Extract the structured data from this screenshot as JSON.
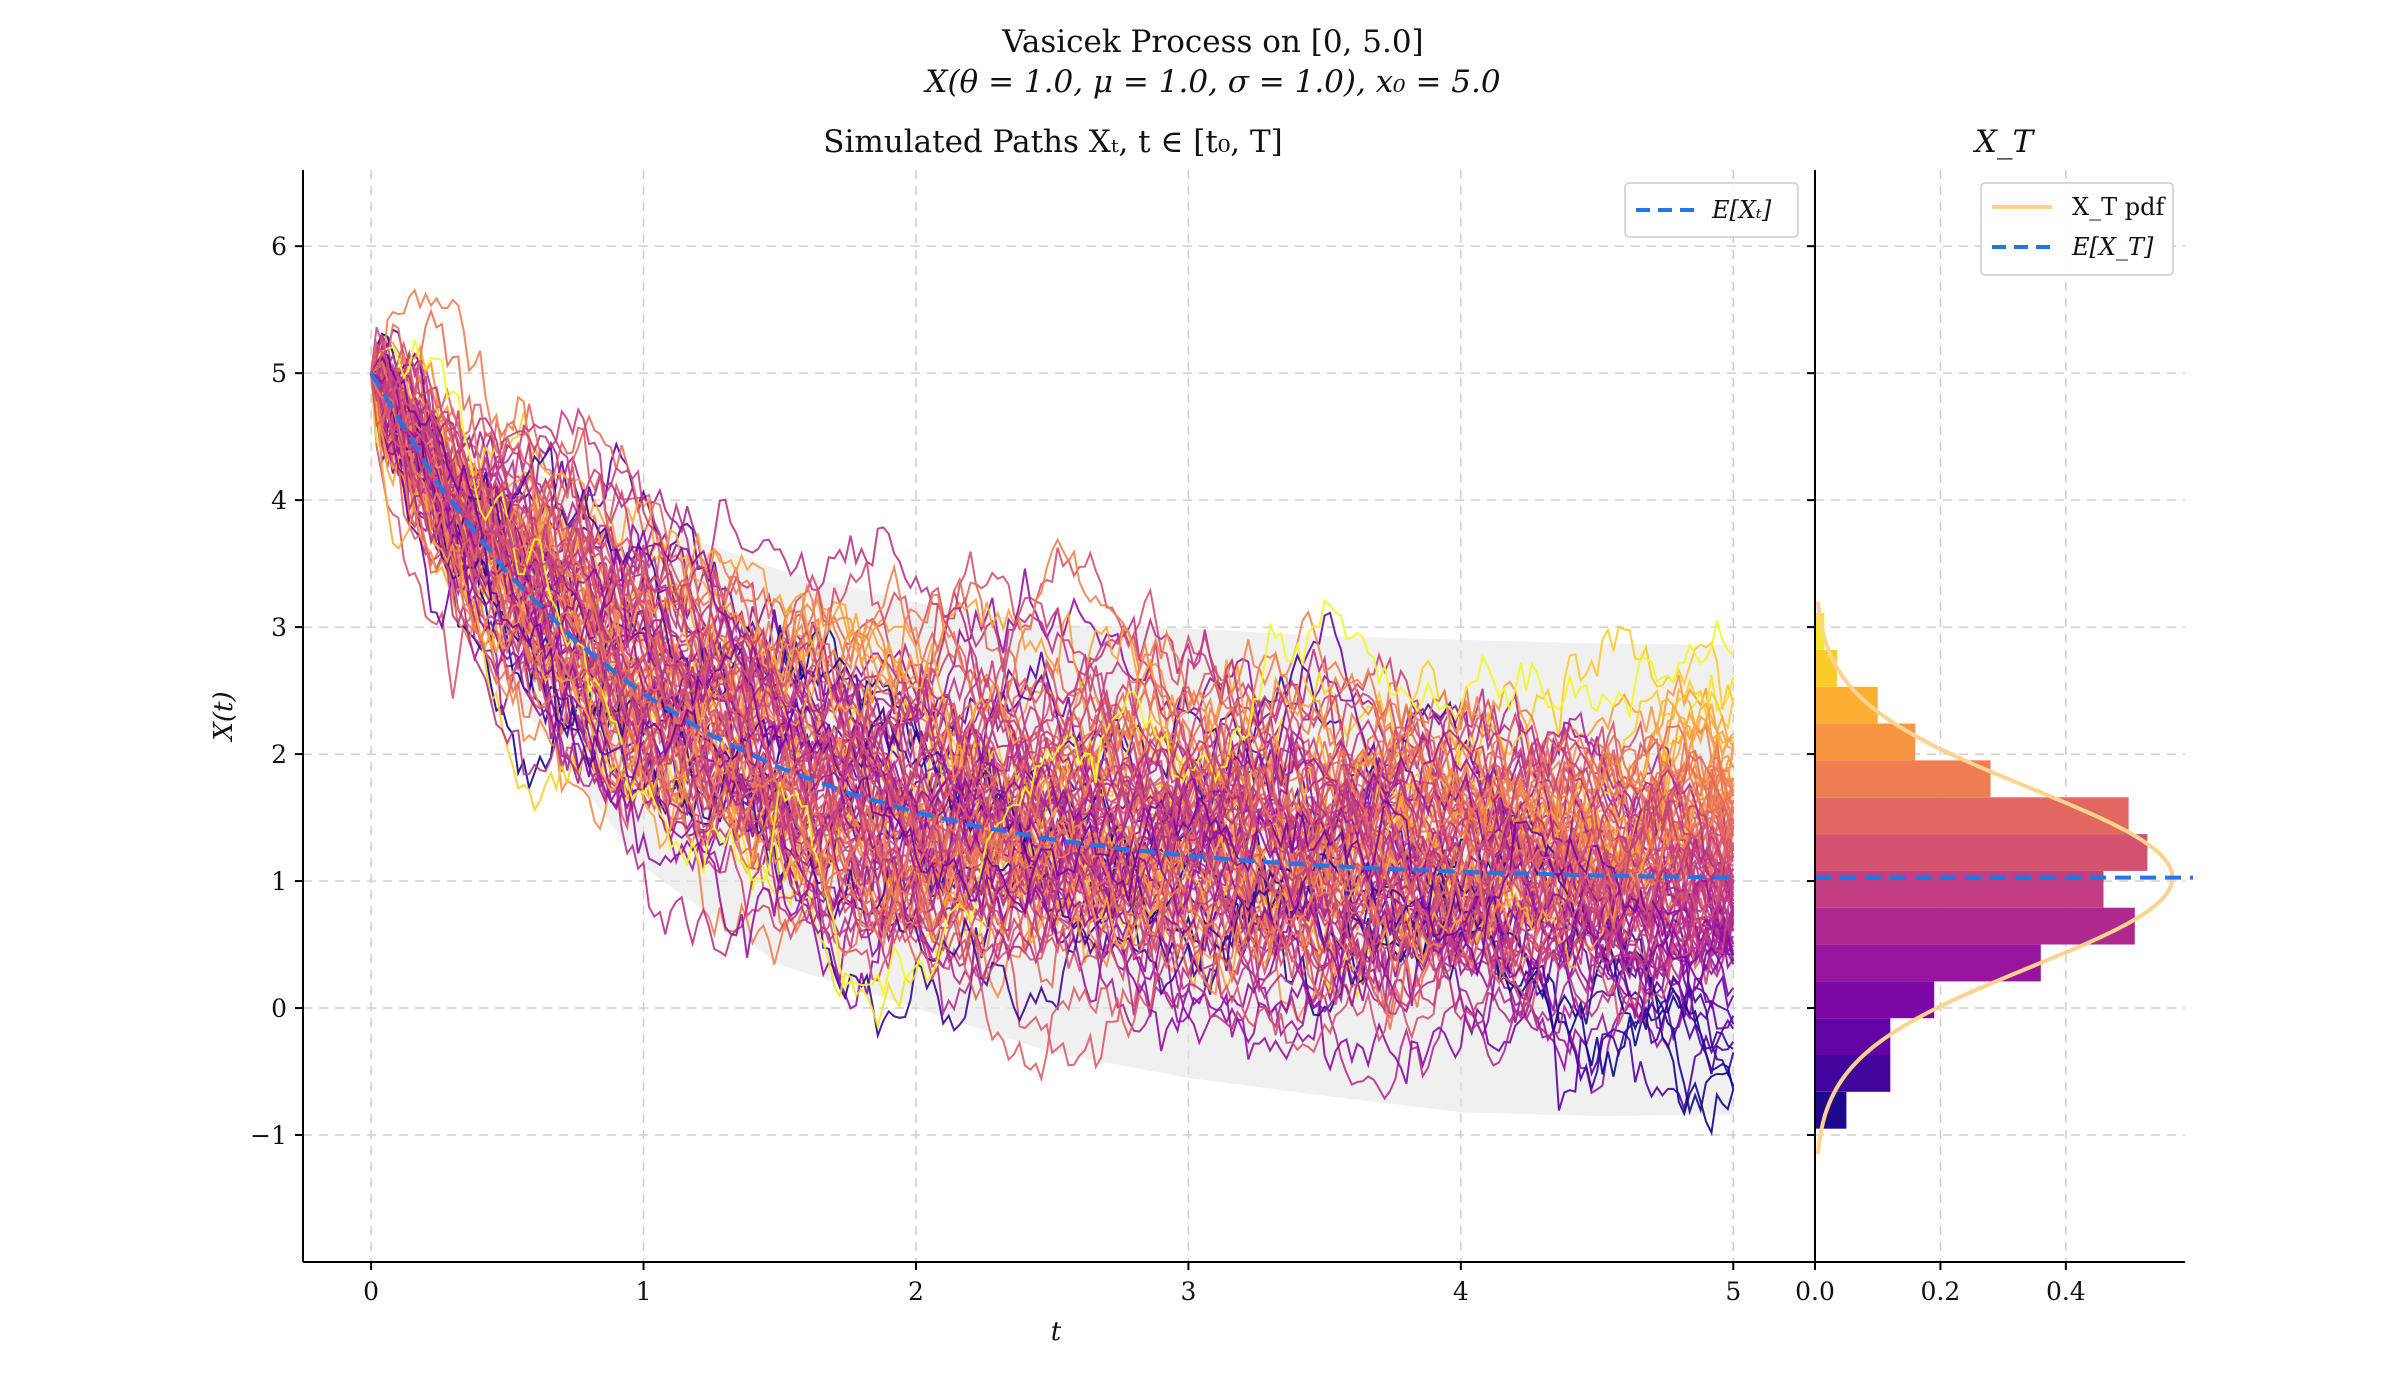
{
  "figure": {
    "title_line1": "Vasicek Process on [0, 5.0]",
    "title_line2": "X(θ = 1.0, μ = 1.0, σ = 1.0), x₀ = 5.0"
  },
  "chart_data": [
    {
      "type": "line",
      "title": "Simulated Paths Xₜ, t ∈ [t₀, T]",
      "xlabel": "t",
      "ylabel": "X(t)",
      "xlim": [
        -0.25,
        5.3
      ],
      "ylim": [
        -2.0,
        6.6
      ],
      "xticks": [
        0,
        1,
        2,
        3,
        4,
        5
      ],
      "xtick_labels": [
        "0",
        "1",
        "2",
        "3",
        "4",
        "5"
      ],
      "yticks": [
        -1,
        0,
        1,
        2,
        3,
        4,
        5,
        6
      ],
      "ytick_labels": [
        "−1",
        "0",
        "1",
        "2",
        "3",
        "4",
        "5",
        "6"
      ],
      "grid": true,
      "process": {
        "theta": 1.0,
        "mu": 1.0,
        "sigma": 1.0,
        "x0": 5.0,
        "T": 5.0
      },
      "n_paths": 100,
      "n_steps": 500,
      "path_colormap": "plasma",
      "path_color_by": "terminal value",
      "series": [
        {
          "name": "E[Xₜ]",
          "style": "dashed",
          "color": "#1f77e8",
          "x": [
            0,
            0.25,
            0.5,
            0.75,
            1.0,
            1.25,
            1.5,
            1.75,
            2.0,
            2.25,
            2.5,
            2.75,
            3.0,
            3.25,
            3.5,
            3.75,
            4.0,
            4.25,
            4.5,
            4.75,
            5.0
          ],
          "y": [
            5.0,
            4.115,
            3.426,
            2.89,
            2.472,
            2.146,
            1.893,
            1.695,
            1.541,
            1.421,
            1.328,
            1.256,
            1.199,
            1.155,
            1.121,
            1.094,
            1.073,
            1.057,
            1.044,
            1.035,
            1.027
          ]
        }
      ],
      "confidence_band": {
        "color": "#e6e6e6",
        "x": [
          0,
          0.5,
          1.0,
          1.5,
          2.0,
          2.5,
          3.0,
          3.5,
          4.0,
          4.5,
          5.0
        ],
        "upper": [
          5.0,
          4.32,
          3.83,
          3.45,
          3.19,
          3.02,
          2.99,
          2.93,
          2.9,
          2.87,
          2.86
        ],
        "lower": [
          5.0,
          2.53,
          1.11,
          0.34,
          0.0,
          -0.35,
          -0.55,
          -0.69,
          -0.82,
          -0.85,
          -0.84
        ]
      },
      "legend": {
        "position": "upper right",
        "entries": [
          "E[Xₜ]"
        ]
      }
    },
    {
      "type": "bar",
      "orientation": "horizontal",
      "title": "X_T",
      "xlim": [
        0,
        0.59
      ],
      "ylim": [
        -2.0,
        6.6
      ],
      "xticks": [
        0.0,
        0.2,
        0.4
      ],
      "xtick_labels": [
        "0.0",
        "0.2",
        "0.4"
      ],
      "grid": true,
      "bin_edges": [
        -0.95,
        -0.66,
        -0.37,
        -0.08,
        0.21,
        0.5,
        0.79,
        1.08,
        1.37,
        1.66,
        1.95,
        2.24,
        2.53,
        2.82,
        3.11
      ],
      "density": [
        0.05,
        0.12,
        0.12,
        0.19,
        0.36,
        0.51,
        0.46,
        0.53,
        0.5,
        0.28,
        0.16,
        0.1,
        0.035,
        0.015
      ],
      "bar_colormap": "plasma",
      "series": [
        {
          "name": "X_T pdf",
          "color": "#fbd38e",
          "mean": 1.027,
          "std": 0.7,
          "y_range": [
            -1.15,
            3.2
          ]
        },
        {
          "name": "E[X_T]",
          "style": "dashed",
          "color": "#1f77e8",
          "y": 1.027
        }
      ],
      "legend": {
        "position": "upper right",
        "entries": [
          "X_T pdf",
          "E[X_T]"
        ]
      }
    }
  ]
}
